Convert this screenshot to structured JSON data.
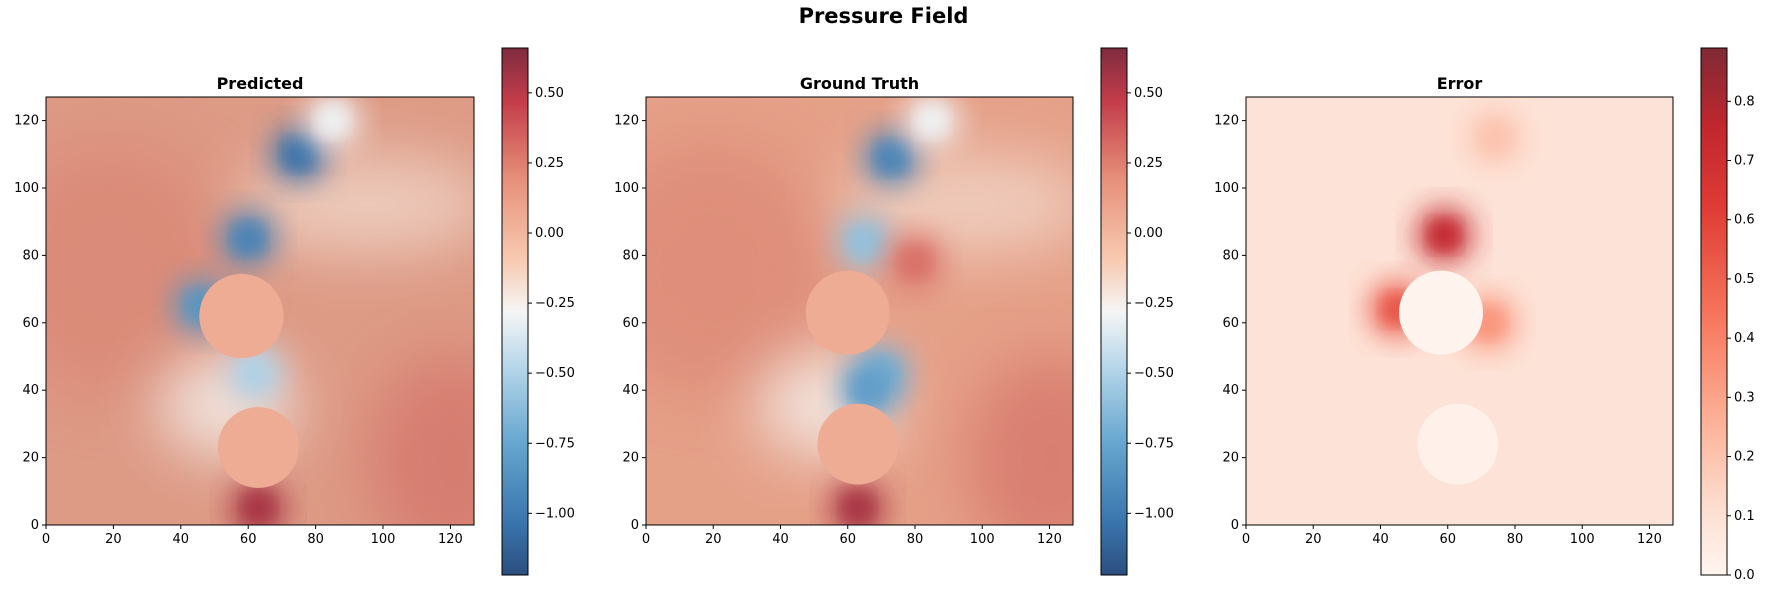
{
  "suptitle": "Pressure Field",
  "chart_data": [
    {
      "type": "heatmap",
      "title": "Predicted",
      "xlim": [
        0,
        127
      ],
      "ylim": [
        0,
        127
      ],
      "xticks": [
        0,
        20,
        40,
        60,
        80,
        100,
        120
      ],
      "yticks": [
        0,
        20,
        40,
        60,
        80,
        100,
        120
      ],
      "colormap": "RdBu_r",
      "clim": [
        -1.22,
        0.66
      ],
      "colorbar_ticks": [
        "0.50",
        "0.25",
        "0.00",
        "−0.25",
        "−0.50",
        "−0.75",
        "−1.00"
      ],
      "colorbar_tick_values": [
        0.5,
        0.25,
        0.0,
        -0.25,
        -0.5,
        -0.75,
        -1.0
      ],
      "cylinders": [
        {
          "x": 58,
          "y": 62,
          "r": 12.5,
          "value": 0.05
        },
        {
          "x": 63,
          "y": 23,
          "r": 12,
          "value": 0.05
        }
      ],
      "features": [
        {
          "x": 75,
          "y": 110,
          "value": -1.05
        },
        {
          "x": 60,
          "y": 85,
          "value": -0.95
        },
        {
          "x": 46,
          "y": 65,
          "value": -0.85
        },
        {
          "x": 62,
          "y": 45,
          "value": -0.5
        },
        {
          "x": 63,
          "y": 5,
          "value": 0.55
        },
        {
          "x": 85,
          "y": 120,
          "value": -0.3
        }
      ]
    },
    {
      "type": "heatmap",
      "title": "Ground Truth",
      "xlim": [
        0,
        127
      ],
      "ylim": [
        0,
        127
      ],
      "xticks": [
        0,
        20,
        40,
        60,
        80,
        100,
        120
      ],
      "yticks": [
        0,
        20,
        40,
        60,
        80,
        100,
        120
      ],
      "colormap": "RdBu_r",
      "clim": [
        -1.22,
        0.66
      ],
      "colorbar_ticks": [
        "0.50",
        "0.25",
        "0.00",
        "−0.25",
        "−0.50",
        "−0.75",
        "−1.00"
      ],
      "colorbar_tick_values": [
        0.5,
        0.25,
        0.0,
        -0.25,
        -0.5,
        -0.75,
        -1.0
      ],
      "cylinders": [
        {
          "x": 60,
          "y": 63,
          "r": 12.5,
          "value": 0.05
        },
        {
          "x": 63,
          "y": 24,
          "r": 12,
          "value": 0.05
        }
      ],
      "features": [
        {
          "x": 73,
          "y": 109,
          "value": -0.95
        },
        {
          "x": 65,
          "y": 84,
          "value": -0.6
        },
        {
          "x": 70,
          "y": 45,
          "value": -0.7
        },
        {
          "x": 66,
          "y": 40,
          "value": -0.8
        },
        {
          "x": 63,
          "y": 5,
          "value": 0.55
        },
        {
          "x": 80,
          "y": 78,
          "value": 0.3
        },
        {
          "x": 85,
          "y": 120,
          "value": -0.3
        }
      ]
    },
    {
      "type": "heatmap",
      "title": "Error",
      "xlim": [
        0,
        127
      ],
      "ylim": [
        0,
        127
      ],
      "xticks": [
        0,
        20,
        40,
        60,
        80,
        100,
        120
      ],
      "yticks": [
        0,
        20,
        40,
        60,
        80,
        100,
        120
      ],
      "colormap": "Reds",
      "clim": [
        0.0,
        0.89
      ],
      "colorbar_ticks": [
        "0.8",
        "0.7",
        "0.6",
        "0.5",
        "0.4",
        "0.3",
        "0.2",
        "0.1",
        "0.0"
      ],
      "colorbar_tick_values": [
        0.8,
        0.7,
        0.6,
        0.5,
        0.4,
        0.3,
        0.2,
        0.1,
        0.0
      ],
      "cylinders": [
        {
          "x": 58,
          "y": 63,
          "r": 12.5,
          "value": 0.01
        },
        {
          "x": 63,
          "y": 24,
          "r": 12,
          "value": 0.02
        }
      ],
      "features": [
        {
          "x": 59,
          "y": 86,
          "value": 0.75
        },
        {
          "x": 45,
          "y": 64,
          "value": 0.55
        },
        {
          "x": 72,
          "y": 60,
          "value": 0.35
        },
        {
          "x": 74,
          "y": 115,
          "value": 0.2
        }
      ]
    }
  ]
}
